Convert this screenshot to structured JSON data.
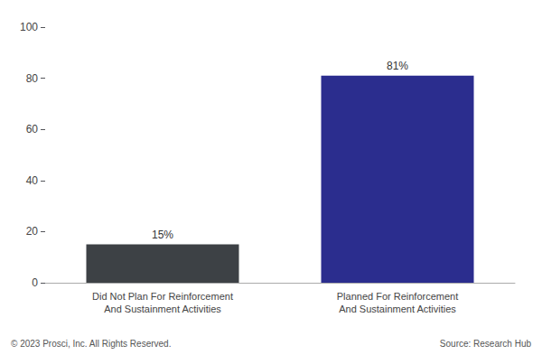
{
  "chart_data": {
    "type": "bar",
    "categories": [
      "Did Not Plan For Reinforcement\nAnd Sustainment Activities",
      "Planned For Reinforcement\nAnd Sustainment Activities"
    ],
    "values": [
      15,
      81
    ],
    "value_labels": [
      "15%",
      "81%"
    ],
    "data_labels": true,
    "colors": [
      "#3d4145",
      "#2b2d8e"
    ],
    "ylim": [
      0,
      100
    ],
    "yticks": [
      0,
      20,
      40,
      60,
      80,
      100
    ],
    "grid": false,
    "annotations": [
      "© 2023 Prosci, Inc. All Rights Reserved.",
      "Source: Research Hub"
    ]
  }
}
